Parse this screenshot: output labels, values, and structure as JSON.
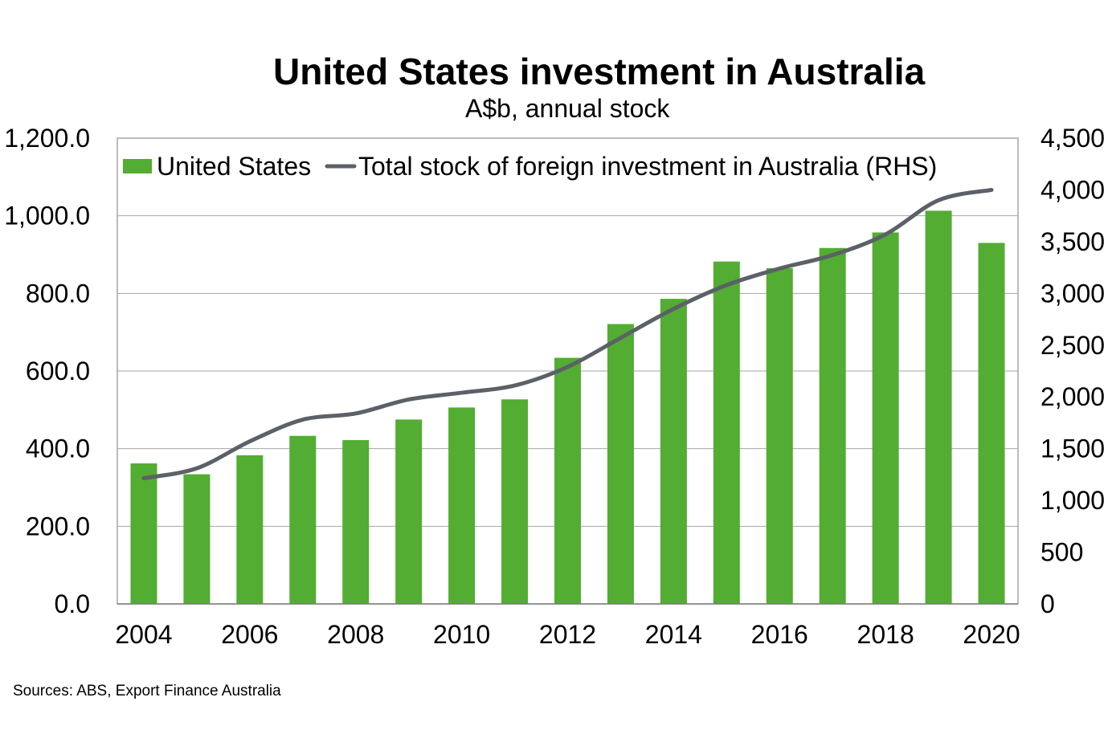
{
  "chart_data": {
    "type": "bar",
    "title": "United States investment in Australia",
    "subtitle": "A$b, annual stock",
    "source": "Sources: ABS, Export Finance Australia",
    "categories": [
      "2004",
      "2005",
      "2006",
      "2007",
      "2008",
      "2009",
      "2010",
      "2011",
      "2012",
      "2013",
      "2014",
      "2015",
      "2016",
      "2017",
      "2018",
      "2019",
      "2020"
    ],
    "x_tick_labels": [
      "2004",
      "2006",
      "2008",
      "2010",
      "2012",
      "2014",
      "2016",
      "2018",
      "2020"
    ],
    "series": [
      {
        "name": "United States",
        "type": "bar",
        "axis": "left",
        "color": "#52ad32",
        "values": [
          362,
          334,
          383,
          433,
          422,
          475,
          506,
          527,
          634,
          721,
          786,
          882,
          865,
          917,
          957,
          1013,
          930
        ]
      },
      {
        "name": "Total stock of foreign investment in Australia (RHS)",
        "type": "line",
        "axis": "right",
        "color": "#5b6166",
        "values": [
          1215,
          1310,
          1570,
          1780,
          1840,
          1975,
          2040,
          2110,
          2290,
          2570,
          2850,
          3080,
          3240,
          3370,
          3570,
          3900,
          4000
        ]
      }
    ],
    "y_left": {
      "min": 0,
      "max": 1200,
      "ticks": [
        "0.0",
        "200.0",
        "400.0",
        "600.0",
        "800.0",
        "1,000.0",
        "1,200.0"
      ]
    },
    "y_right": {
      "min": 0,
      "max": 4500,
      "ticks": [
        "0",
        "500",
        "1,000",
        "1,500",
        "2,000",
        "2,500",
        "3,000",
        "3,500",
        "4,000",
        "4,500"
      ]
    },
    "grid": true,
    "legend_position": "top"
  }
}
